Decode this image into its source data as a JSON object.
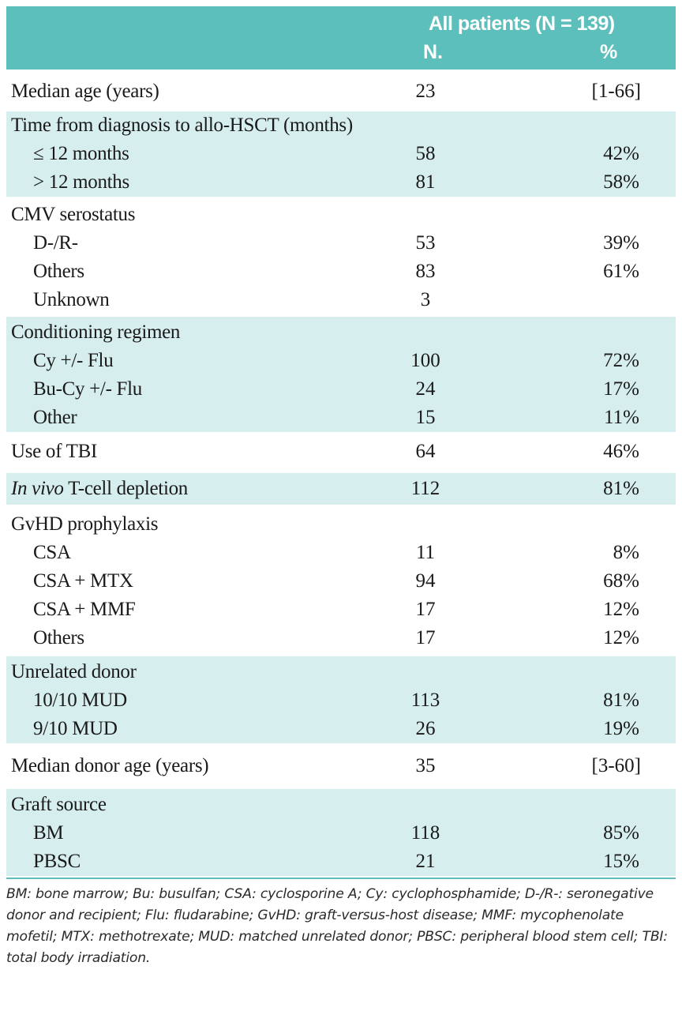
{
  "header": {
    "group_title": "All patients (N = 139)",
    "col_n": "N.",
    "col_pct": "%"
  },
  "rows": {
    "median_age": {
      "label": "Median age (years)",
      "n": "23",
      "pct": "[1-66]"
    },
    "time_dx": {
      "label": "Time from diagnosis to allo-HSCT (months)"
    },
    "time_le12": {
      "label": "≤ 12 months",
      "n": "58",
      "pct": "42%"
    },
    "time_gt12": {
      "label": "> 12 months",
      "n": "81",
      "pct": "58%"
    },
    "cmv": {
      "label": "CMV serostatus"
    },
    "cmv_neg": {
      "label": "D-/R-",
      "n": "53",
      "pct": "39%"
    },
    "cmv_others": {
      "label": "Others",
      "n": "83",
      "pct": "61%"
    },
    "cmv_unknown": {
      "label": "Unknown",
      "n": "3",
      "pct": ""
    },
    "cond": {
      "label": "Conditioning regimen"
    },
    "cond_cy": {
      "label": "Cy +/- Flu",
      "n": "100",
      "pct": "72%"
    },
    "cond_bucy": {
      "label": "Bu-Cy +/- Flu",
      "n": "24",
      "pct": "17%"
    },
    "cond_other": {
      "label": "Other",
      "n": "15",
      "pct": "11%"
    },
    "tbi": {
      "label": "Use of TBI",
      "n": "64",
      "pct": "46%"
    },
    "tcd": {
      "label_italic": "In vivo",
      "label_rest": " T-cell depletion",
      "n": "112",
      "pct": "81%"
    },
    "gvhd": {
      "label": "GvHD prophylaxis"
    },
    "gvhd_csa": {
      "label": "CSA",
      "n": "11",
      "pct": "8%"
    },
    "gvhd_csamtx": {
      "label": "CSA + MTX",
      "n": "94",
      "pct": "68%"
    },
    "gvhd_csammf": {
      "label": "CSA + MMF",
      "n": "17",
      "pct": "12%"
    },
    "gvhd_others": {
      "label": "Others",
      "n": "17",
      "pct": "12%"
    },
    "unrel": {
      "label": "Unrelated donor"
    },
    "unrel_10": {
      "label": "10/10 MUD",
      "n": "113",
      "pct": "81%"
    },
    "unrel_9": {
      "label": "9/10 MUD",
      "n": "26",
      "pct": "19%"
    },
    "donor_age": {
      "label": "Median donor age (years)",
      "n": "35",
      "pct": "[3-60]"
    },
    "graft": {
      "label": "Graft source"
    },
    "graft_bm": {
      "label": "BM",
      "n": "118",
      "pct": "85%"
    },
    "graft_pbsc": {
      "label": "PBSC",
      "n": "21",
      "pct": "15%"
    }
  },
  "footnote": "BM: bone marrow; Bu:  busulfan; CSA: cyclosporine A; Cy: cyclophosphamide; D-/R-: seronegative donor and recipient; Flu: fludarabine; GvHD: graft-versus-host disease; MMF: mycophenolate mofetil; MTX: methotrexate; MUD: matched unrelated donor; PBSC: peripheral blood stem cell; TBI: total body irradiation.",
  "colors": {
    "header_bg": "#5dbfbc",
    "shade_bg": "#d6eeee"
  }
}
